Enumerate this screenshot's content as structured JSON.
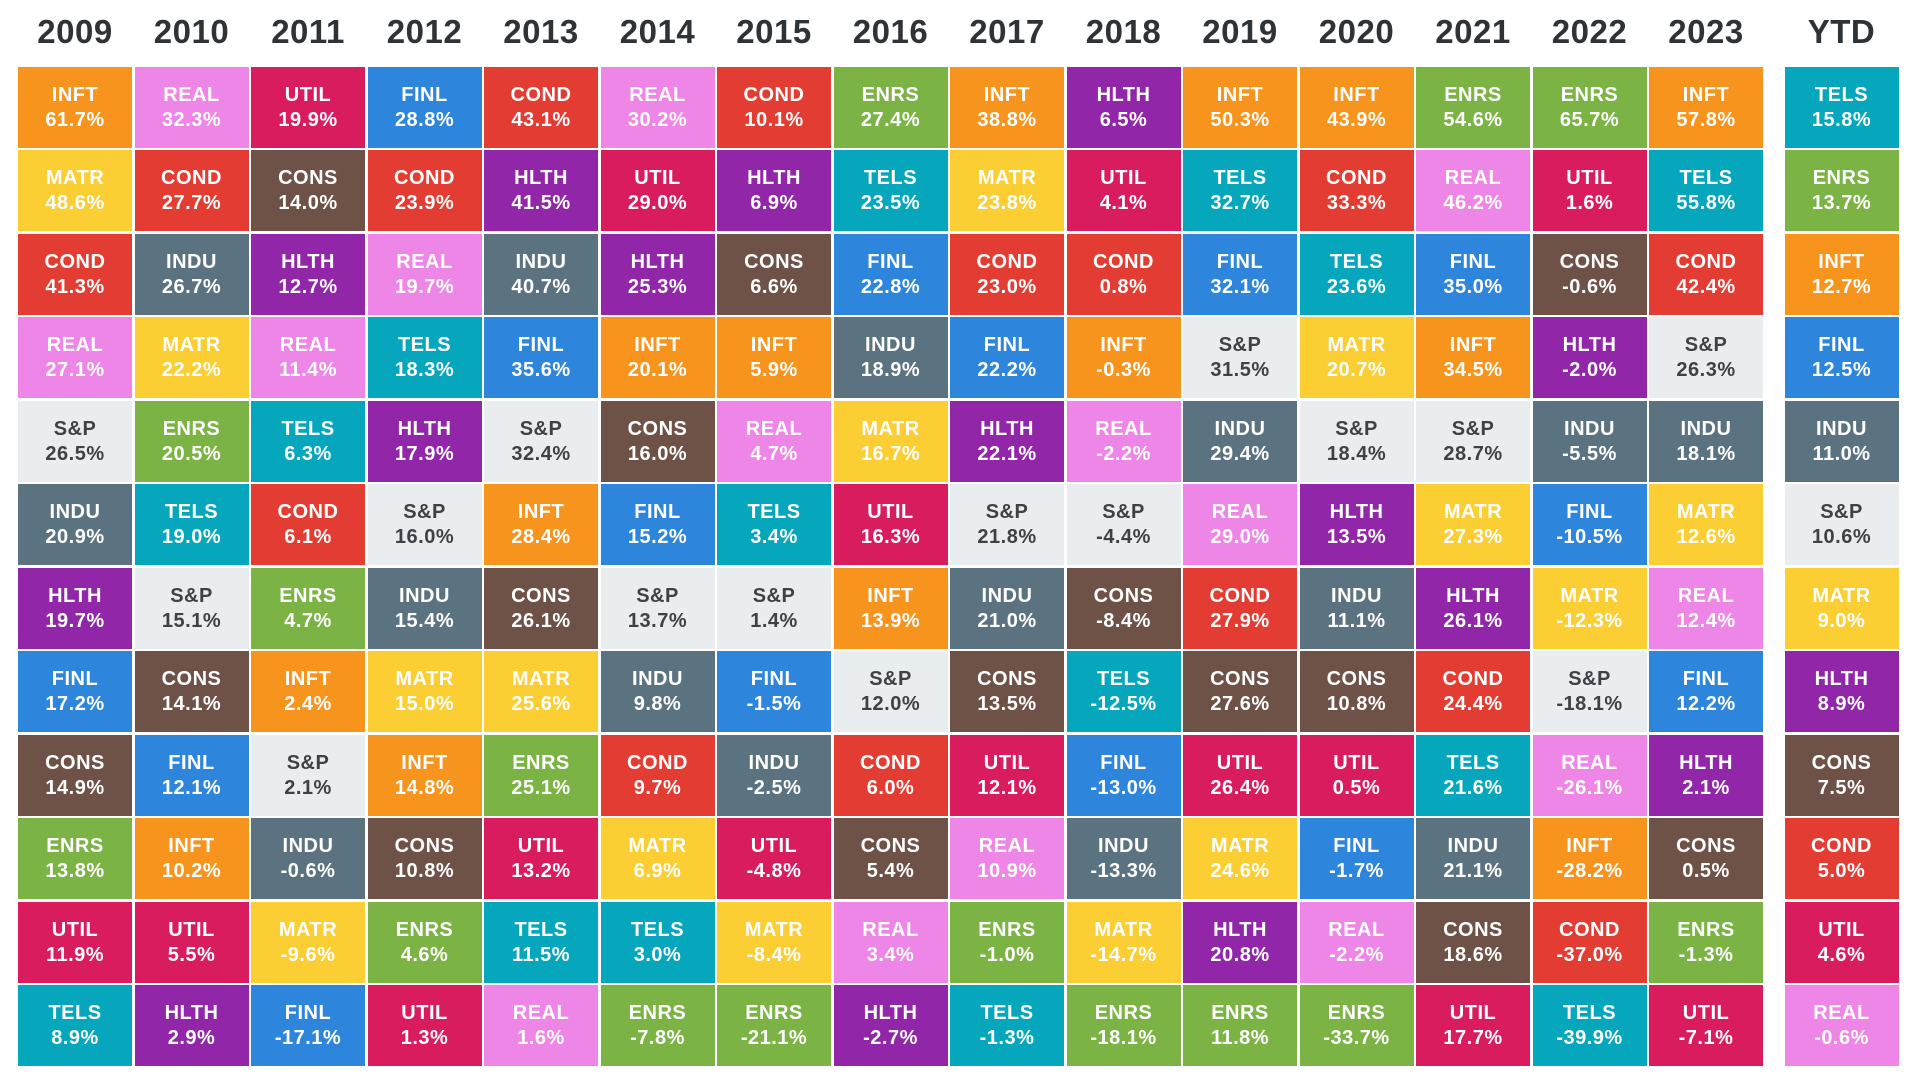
{
  "colors": {
    "INFT": "#F7941E",
    "MATR": "#FBCE33",
    "COND": "#E23C33",
    "REAL": "#EE86E8",
    "INDU": "#5B7380",
    "HLTH": "#9126A9",
    "UTIL": "#D81C5E",
    "FINL": "#2E85DC",
    "TELS": "#06A7BD",
    "ENRS": "#7BB444",
    "CONS": "#6E5147",
    "S&P": "#EAEDEF",
    "sp_text": "#3d4247",
    "header_text": "#2e3338",
    "background": "#ffffff"
  },
  "chart_data": {
    "type": "heatmap",
    "title": "Sector returns ranked by year (periodic table of S&P 500 sector performance)",
    "legend_position": "none",
    "grid": "off",
    "columns": [
      {
        "label": "2009",
        "cells": [
          {
            "sector": "INFT",
            "value": "61.7%"
          },
          {
            "sector": "MATR",
            "value": "48.6%"
          },
          {
            "sector": "COND",
            "value": "41.3%"
          },
          {
            "sector": "REAL",
            "value": "27.1%"
          },
          {
            "sector": "S&P",
            "value": "26.5%"
          },
          {
            "sector": "INDU",
            "value": "20.9%"
          },
          {
            "sector": "HLTH",
            "value": "19.7%"
          },
          {
            "sector": "FINL",
            "value": "17.2%"
          },
          {
            "sector": "CONS",
            "value": "14.9%"
          },
          {
            "sector": "ENRS",
            "value": "13.8%"
          },
          {
            "sector": "UTIL",
            "value": "11.9%"
          },
          {
            "sector": "TELS",
            "value": "8.9%"
          }
        ]
      },
      {
        "label": "2010",
        "cells": [
          {
            "sector": "REAL",
            "value": "32.3%"
          },
          {
            "sector": "COND",
            "value": "27.7%"
          },
          {
            "sector": "INDU",
            "value": "26.7%"
          },
          {
            "sector": "MATR",
            "value": "22.2%"
          },
          {
            "sector": "ENRS",
            "value": "20.5%"
          },
          {
            "sector": "TELS",
            "value": "19.0%"
          },
          {
            "sector": "S&P",
            "value": "15.1%"
          },
          {
            "sector": "CONS",
            "value": "14.1%"
          },
          {
            "sector": "FINL",
            "value": "12.1%"
          },
          {
            "sector": "INFT",
            "value": "10.2%"
          },
          {
            "sector": "UTIL",
            "value": "5.5%"
          },
          {
            "sector": "HLTH",
            "value": "2.9%"
          }
        ]
      },
      {
        "label": "2011",
        "cells": [
          {
            "sector": "UTIL",
            "value": "19.9%"
          },
          {
            "sector": "CONS",
            "value": "14.0%"
          },
          {
            "sector": "HLTH",
            "value": "12.7%"
          },
          {
            "sector": "REAL",
            "value": "11.4%"
          },
          {
            "sector": "TELS",
            "value": "6.3%"
          },
          {
            "sector": "COND",
            "value": "6.1%"
          },
          {
            "sector": "ENRS",
            "value": "4.7%"
          },
          {
            "sector": "INFT",
            "value": "2.4%"
          },
          {
            "sector": "S&P",
            "value": "2.1%"
          },
          {
            "sector": "INDU",
            "value": "-0.6%"
          },
          {
            "sector": "MATR",
            "value": "-9.6%"
          },
          {
            "sector": "FINL",
            "value": "-17.1%"
          }
        ]
      },
      {
        "label": "2012",
        "cells": [
          {
            "sector": "FINL",
            "value": "28.8%"
          },
          {
            "sector": "COND",
            "value": "23.9%"
          },
          {
            "sector": "REAL",
            "value": "19.7%"
          },
          {
            "sector": "TELS",
            "value": "18.3%"
          },
          {
            "sector": "HLTH",
            "value": "17.9%"
          },
          {
            "sector": "S&P",
            "value": "16.0%"
          },
          {
            "sector": "INDU",
            "value": "15.4%"
          },
          {
            "sector": "MATR",
            "value": "15.0%"
          },
          {
            "sector": "INFT",
            "value": "14.8%"
          },
          {
            "sector": "CONS",
            "value": "10.8%"
          },
          {
            "sector": "ENRS",
            "value": "4.6%"
          },
          {
            "sector": "UTIL",
            "value": "1.3%"
          }
        ]
      },
      {
        "label": "2013",
        "cells": [
          {
            "sector": "COND",
            "value": "43.1%"
          },
          {
            "sector": "HLTH",
            "value": "41.5%"
          },
          {
            "sector": "INDU",
            "value": "40.7%"
          },
          {
            "sector": "FINL",
            "value": "35.6%"
          },
          {
            "sector": "S&P",
            "value": "32.4%"
          },
          {
            "sector": "INFT",
            "value": "28.4%"
          },
          {
            "sector": "CONS",
            "value": "26.1%"
          },
          {
            "sector": "MATR",
            "value": "25.6%"
          },
          {
            "sector": "ENRS",
            "value": "25.1%"
          },
          {
            "sector": "UTIL",
            "value": "13.2%"
          },
          {
            "sector": "TELS",
            "value": "11.5%"
          },
          {
            "sector": "REAL",
            "value": "1.6%"
          }
        ]
      },
      {
        "label": "2014",
        "cells": [
          {
            "sector": "REAL",
            "value": "30.2%"
          },
          {
            "sector": "UTIL",
            "value": "29.0%"
          },
          {
            "sector": "HLTH",
            "value": "25.3%"
          },
          {
            "sector": "INFT",
            "value": "20.1%"
          },
          {
            "sector": "CONS",
            "value": "16.0%"
          },
          {
            "sector": "FINL",
            "value": "15.2%"
          },
          {
            "sector": "S&P",
            "value": "13.7%"
          },
          {
            "sector": "INDU",
            "value": "9.8%"
          },
          {
            "sector": "COND",
            "value": "9.7%"
          },
          {
            "sector": "MATR",
            "value": "6.9%"
          },
          {
            "sector": "TELS",
            "value": "3.0%"
          },
          {
            "sector": "ENRS",
            "value": "-7.8%"
          }
        ]
      },
      {
        "label": "2015",
        "cells": [
          {
            "sector": "COND",
            "value": "10.1%"
          },
          {
            "sector": "HLTH",
            "value": "6.9%"
          },
          {
            "sector": "CONS",
            "value": "6.6%"
          },
          {
            "sector": "INFT",
            "value": "5.9%"
          },
          {
            "sector": "REAL",
            "value": "4.7%"
          },
          {
            "sector": "TELS",
            "value": "3.4%"
          },
          {
            "sector": "S&P",
            "value": "1.4%"
          },
          {
            "sector": "FINL",
            "value": "-1.5%"
          },
          {
            "sector": "INDU",
            "value": "-2.5%"
          },
          {
            "sector": "UTIL",
            "value": "-4.8%"
          },
          {
            "sector": "MATR",
            "value": "-8.4%"
          },
          {
            "sector": "ENRS",
            "value": "-21.1%"
          }
        ]
      },
      {
        "label": "2016",
        "cells": [
          {
            "sector": "ENRS",
            "value": "27.4%"
          },
          {
            "sector": "TELS",
            "value": "23.5%"
          },
          {
            "sector": "FINL",
            "value": "22.8%"
          },
          {
            "sector": "INDU",
            "value": "18.9%"
          },
          {
            "sector": "MATR",
            "value": "16.7%"
          },
          {
            "sector": "UTIL",
            "value": "16.3%"
          },
          {
            "sector": "INFT",
            "value": "13.9%"
          },
          {
            "sector": "S&P",
            "value": "12.0%"
          },
          {
            "sector": "COND",
            "value": "6.0%"
          },
          {
            "sector": "CONS",
            "value": "5.4%"
          },
          {
            "sector": "REAL",
            "value": "3.4%"
          },
          {
            "sector": "HLTH",
            "value": "-2.7%"
          }
        ]
      },
      {
        "label": "2017",
        "cells": [
          {
            "sector": "INFT",
            "value": "38.8%"
          },
          {
            "sector": "MATR",
            "value": "23.8%"
          },
          {
            "sector": "COND",
            "value": "23.0%"
          },
          {
            "sector": "FINL",
            "value": "22.2%"
          },
          {
            "sector": "HLTH",
            "value": "22.1%"
          },
          {
            "sector": "S&P",
            "value": "21.8%"
          },
          {
            "sector": "INDU",
            "value": "21.0%"
          },
          {
            "sector": "CONS",
            "value": "13.5%"
          },
          {
            "sector": "UTIL",
            "value": "12.1%"
          },
          {
            "sector": "REAL",
            "value": "10.9%"
          },
          {
            "sector": "ENRS",
            "value": "-1.0%"
          },
          {
            "sector": "TELS",
            "value": "-1.3%"
          }
        ]
      },
      {
        "label": "2018",
        "cells": [
          {
            "sector": "HLTH",
            "value": "6.5%"
          },
          {
            "sector": "UTIL",
            "value": "4.1%"
          },
          {
            "sector": "COND",
            "value": "0.8%"
          },
          {
            "sector": "INFT",
            "value": "-0.3%"
          },
          {
            "sector": "REAL",
            "value": "-2.2%"
          },
          {
            "sector": "S&P",
            "value": "-4.4%"
          },
          {
            "sector": "CONS",
            "value": "-8.4%"
          },
          {
            "sector": "TELS",
            "value": "-12.5%"
          },
          {
            "sector": "FINL",
            "value": "-13.0%"
          },
          {
            "sector": "INDU",
            "value": "-13.3%"
          },
          {
            "sector": "MATR",
            "value": "-14.7%"
          },
          {
            "sector": "ENRS",
            "value": "-18.1%"
          }
        ]
      },
      {
        "label": "2019",
        "cells": [
          {
            "sector": "INFT",
            "value": "50.3%"
          },
          {
            "sector": "TELS",
            "value": "32.7%"
          },
          {
            "sector": "FINL",
            "value": "32.1%"
          },
          {
            "sector": "S&P",
            "value": "31.5%"
          },
          {
            "sector": "INDU",
            "value": "29.4%"
          },
          {
            "sector": "REAL",
            "value": "29.0%"
          },
          {
            "sector": "COND",
            "value": "27.9%"
          },
          {
            "sector": "CONS",
            "value": "27.6%"
          },
          {
            "sector": "UTIL",
            "value": "26.4%"
          },
          {
            "sector": "MATR",
            "value": "24.6%"
          },
          {
            "sector": "HLTH",
            "value": "20.8%"
          },
          {
            "sector": "ENRS",
            "value": "11.8%"
          }
        ]
      },
      {
        "label": "2020",
        "cells": [
          {
            "sector": "INFT",
            "value": "43.9%"
          },
          {
            "sector": "COND",
            "value": "33.3%"
          },
          {
            "sector": "TELS",
            "value": "23.6%"
          },
          {
            "sector": "MATR",
            "value": "20.7%"
          },
          {
            "sector": "S&P",
            "value": "18.4%"
          },
          {
            "sector": "HLTH",
            "value": "13.5%"
          },
          {
            "sector": "INDU",
            "value": "11.1%"
          },
          {
            "sector": "CONS",
            "value": "10.8%"
          },
          {
            "sector": "UTIL",
            "value": "0.5%"
          },
          {
            "sector": "FINL",
            "value": "-1.7%"
          },
          {
            "sector": "REAL",
            "value": "-2.2%"
          },
          {
            "sector": "ENRS",
            "value": "-33.7%"
          }
        ]
      },
      {
        "label": "2021",
        "cells": [
          {
            "sector": "ENRS",
            "value": "54.6%"
          },
          {
            "sector": "REAL",
            "value": "46.2%"
          },
          {
            "sector": "FINL",
            "value": "35.0%"
          },
          {
            "sector": "INFT",
            "value": "34.5%"
          },
          {
            "sector": "S&P",
            "value": "28.7%"
          },
          {
            "sector": "MATR",
            "value": "27.3%"
          },
          {
            "sector": "HLTH",
            "value": "26.1%"
          },
          {
            "sector": "COND",
            "value": "24.4%"
          },
          {
            "sector": "TELS",
            "value": "21.6%"
          },
          {
            "sector": "INDU",
            "value": "21.1%"
          },
          {
            "sector": "CONS",
            "value": "18.6%"
          },
          {
            "sector": "UTIL",
            "value": "17.7%"
          }
        ]
      },
      {
        "label": "2022",
        "cells": [
          {
            "sector": "ENRS",
            "value": "65.7%"
          },
          {
            "sector": "UTIL",
            "value": "1.6%"
          },
          {
            "sector": "CONS",
            "value": "-0.6%"
          },
          {
            "sector": "HLTH",
            "value": "-2.0%"
          },
          {
            "sector": "INDU",
            "value": "-5.5%"
          },
          {
            "sector": "FINL",
            "value": "-10.5%"
          },
          {
            "sector": "MATR",
            "value": "-12.3%"
          },
          {
            "sector": "S&P",
            "value": "-18.1%"
          },
          {
            "sector": "REAL",
            "value": "-26.1%"
          },
          {
            "sector": "INFT",
            "value": "-28.2%"
          },
          {
            "sector": "COND",
            "value": "-37.0%"
          },
          {
            "sector": "TELS",
            "value": "-39.9%"
          }
        ]
      },
      {
        "label": "2023",
        "cells": [
          {
            "sector": "INFT",
            "value": "57.8%"
          },
          {
            "sector": "TELS",
            "value": "55.8%"
          },
          {
            "sector": "COND",
            "value": "42.4%"
          },
          {
            "sector": "S&P",
            "value": "26.3%"
          },
          {
            "sector": "INDU",
            "value": "18.1%"
          },
          {
            "sector": "MATR",
            "value": "12.6%"
          },
          {
            "sector": "REAL",
            "value": "12.4%"
          },
          {
            "sector": "FINL",
            "value": "12.2%"
          },
          {
            "sector": "HLTH",
            "value": "2.1%"
          },
          {
            "sector": "CONS",
            "value": "0.5%"
          },
          {
            "sector": "ENRS",
            "value": "-1.3%"
          },
          {
            "sector": "UTIL",
            "value": "-7.1%"
          }
        ]
      },
      {
        "label": "YTD",
        "cells": [
          {
            "sector": "TELS",
            "value": "15.8%"
          },
          {
            "sector": "ENRS",
            "value": "13.7%"
          },
          {
            "sector": "INFT",
            "value": "12.7%"
          },
          {
            "sector": "FINL",
            "value": "12.5%"
          },
          {
            "sector": "INDU",
            "value": "11.0%"
          },
          {
            "sector": "S&P",
            "value": "10.6%"
          },
          {
            "sector": "MATR",
            "value": "9.0%"
          },
          {
            "sector": "HLTH",
            "value": "8.9%"
          },
          {
            "sector": "CONS",
            "value": "7.5%"
          },
          {
            "sector": "COND",
            "value": "5.0%"
          },
          {
            "sector": "UTIL",
            "value": "4.6%"
          },
          {
            "sector": "REAL",
            "value": "-0.6%"
          }
        ]
      }
    ]
  }
}
